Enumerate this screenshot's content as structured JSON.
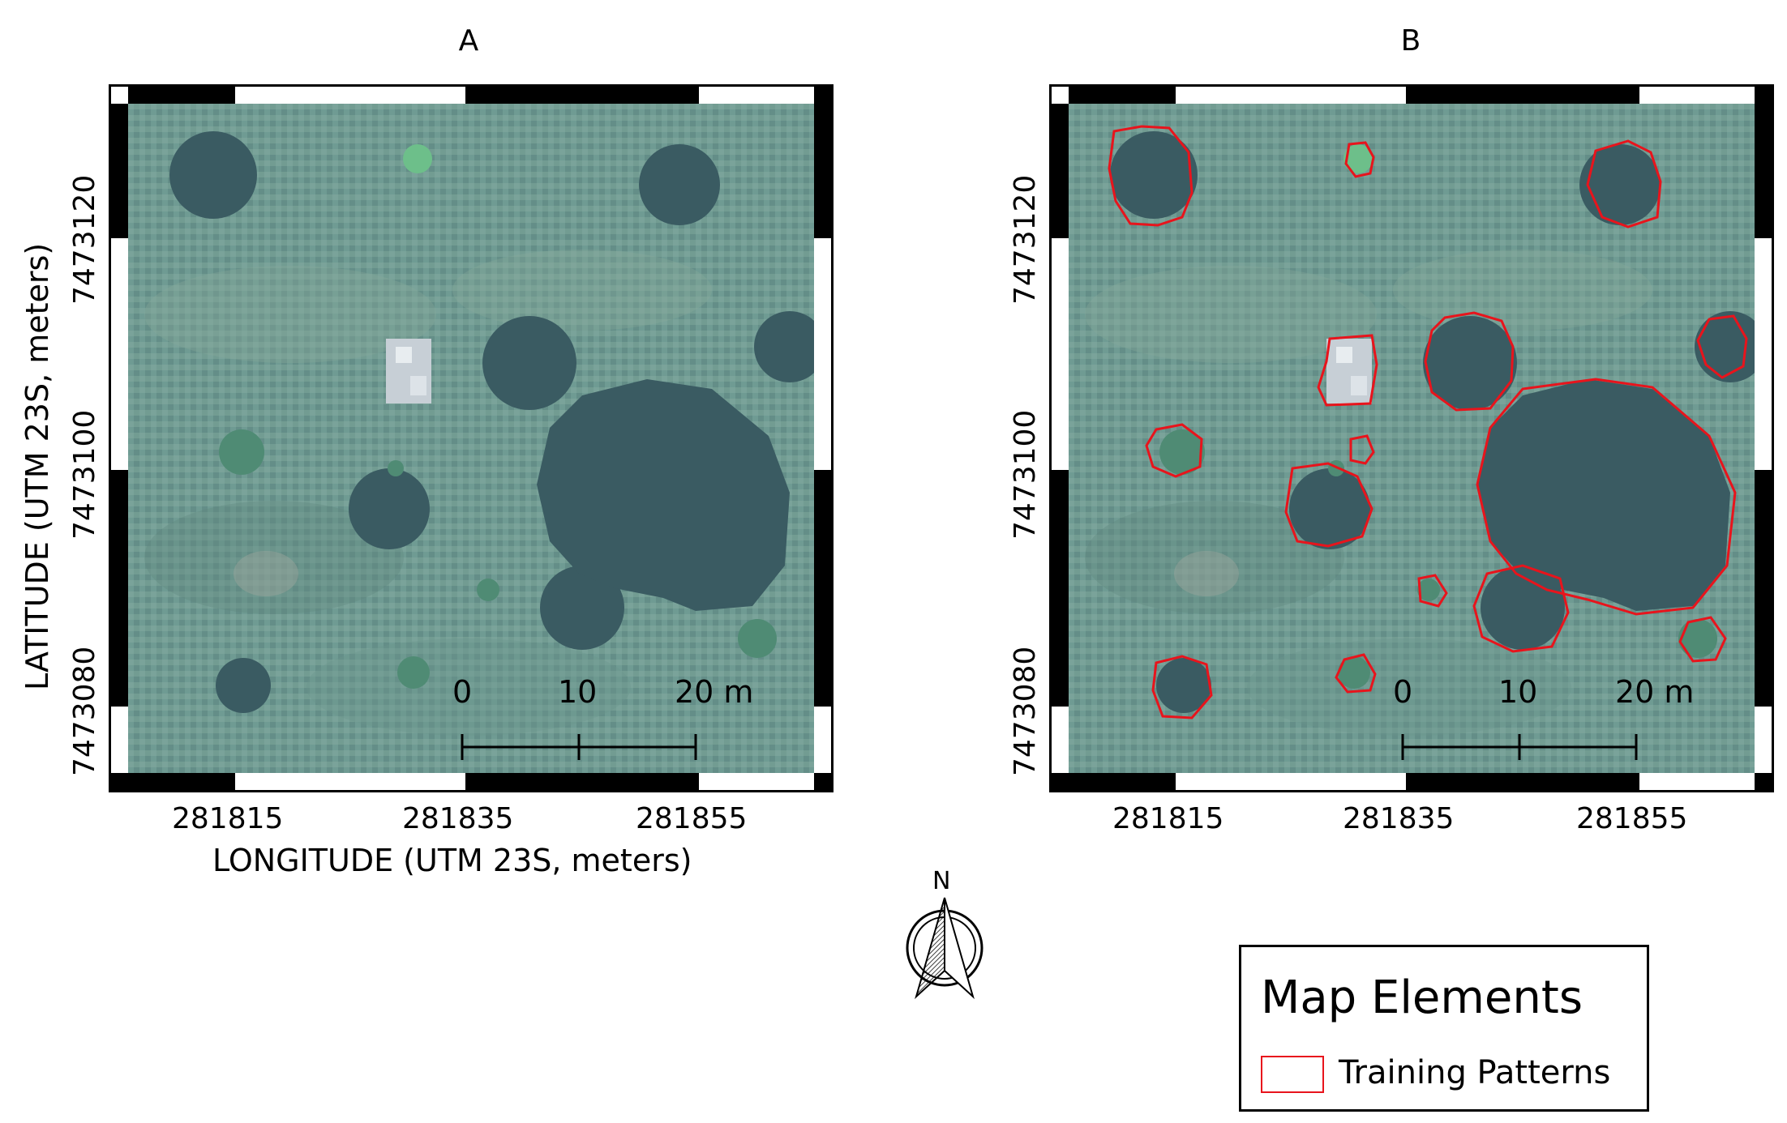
{
  "panels": [
    {
      "title": "A",
      "x_ticks": [
        "281815",
        "281835",
        "281855"
      ],
      "y_ticks": [
        "7473120",
        "7473100",
        "7473080"
      ],
      "x_axis_label": "LONGITUDE (UTM 23S, meters)",
      "y_axis_label": "LATITUDE (UTM 23S, meters)",
      "scale_bar": [
        "0",
        "10",
        "20 m"
      ],
      "show_training_patterns": false
    },
    {
      "title": "B",
      "x_ticks": [
        "281815",
        "281835",
        "281855"
      ],
      "y_ticks": [
        "7473120",
        "7473100",
        "7473080"
      ],
      "scale_bar": [
        "0",
        "10",
        "20 m"
      ],
      "show_training_patterns": true
    }
  ],
  "north_arrow": {
    "label": "N",
    "icon": "north-arrow-icon"
  },
  "legend": {
    "title": "Map Elements",
    "items": [
      {
        "label": "Training Patterns",
        "color": "#e8141c"
      }
    ]
  },
  "colors": {
    "grass": "#6e9a94",
    "canopy": "#37575f",
    "training_outline": "#e8141c"
  }
}
